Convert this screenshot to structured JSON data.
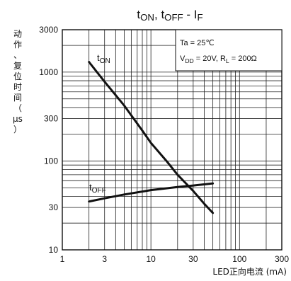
{
  "chart_data": {
    "type": "line",
    "title": {
      "base": "t",
      "sub1": "ON",
      "sep": ", t",
      "sub2": "OFF",
      "tail": " - I",
      "sub3": "F"
    },
    "xlabel": "LED正向电流 (mA)",
    "ylabel": [
      "动",
      "作",
      "、",
      "复",
      "位",
      "时",
      "间",
      "（",
      "μs",
      "）"
    ],
    "xscale": "log",
    "yscale": "log",
    "xlim": [
      1,
      300
    ],
    "ylim": [
      10,
      3000
    ],
    "xticks": [
      1,
      3,
      10,
      30,
      100,
      300
    ],
    "yticks": [
      10,
      30,
      100,
      300,
      1000,
      3000
    ],
    "grid": true,
    "conditions": {
      "line1": "Ta = 25℃",
      "line2": {
        "a": "V",
        "a_sub": "DD",
        "b": " = 20V, R",
        "b_sub": "L",
        "c": " = 200Ω"
      }
    },
    "series": [
      {
        "name": {
          "base": "t",
          "sub": "ON"
        },
        "x": [
          2,
          3,
          5,
          8,
          10,
          15,
          20,
          30,
          40,
          50
        ],
        "y": [
          1300,
          780,
          420,
          220,
          160,
          100,
          70,
          46,
          33,
          26
        ]
      },
      {
        "name": {
          "base": "t",
          "sub": "OFF"
        },
        "x": [
          2,
          3,
          5,
          10,
          20,
          30,
          50
        ],
        "y": [
          35,
          38,
          42,
          47,
          51,
          53,
          56
        ]
      }
    ]
  }
}
